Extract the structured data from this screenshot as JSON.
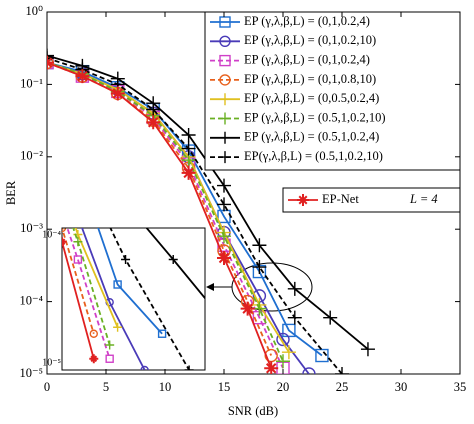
{
  "chart_data": {
    "type": "line",
    "yscale": "log",
    "grid": false,
    "xlabel": "SNR (dB)",
    "ylabel": "BER",
    "xlim": [
      0,
      35
    ],
    "xticks": [
      0,
      5,
      10,
      15,
      20,
      25,
      30,
      35
    ],
    "ylim": [
      1e-05,
      1
    ],
    "yticks": [
      {
        "value": 1e-05,
        "label": "10⁻⁵"
      },
      {
        "value": 0.0001,
        "label": "10⁻⁴"
      },
      {
        "value": 0.001,
        "label": "10⁻³"
      },
      {
        "value": 0.01,
        "label": "10⁻²"
      },
      {
        "value": 0.1,
        "label": "10⁻¹"
      },
      {
        "value": 1,
        "label": "10⁰"
      }
    ],
    "series": [
      {
        "name": "EP (γ,λ,β,L) = (0,1,0.2,4)",
        "color": "#1f6fd0",
        "marker": "square",
        "dashed": false,
        "legend": 1,
        "x": [
          0,
          3,
          6,
          9,
          12,
          15,
          18,
          20.5,
          23.3
        ],
        "values": [
          0.2,
          0.15,
          0.09,
          0.045,
          0.012,
          0.0015,
          0.00026,
          4e-05,
          1.8e-05
        ]
      },
      {
        "name": "EP (γ,λ,β,L) = (0,1,0.2,10)",
        "color": "#4a3bb8",
        "marker": "circle",
        "dashed": false,
        "legend": 1,
        "x": [
          0,
          3,
          6,
          9,
          12,
          15,
          18,
          20,
          22.2
        ],
        "values": [
          0.2,
          0.14,
          0.085,
          0.04,
          0.01,
          0.0009,
          0.00012,
          3e-05,
          1e-05
        ]
      },
      {
        "name": "EP (γ,λ,β,L) = (0,1,0.2,4)",
        "color": "#d040c8",
        "marker": "square",
        "dashed": true,
        "legend": 1,
        "x": [
          0,
          3,
          6,
          9,
          12,
          15,
          18,
          20
        ],
        "values": [
          0.2,
          0.13,
          0.08,
          0.035,
          0.008,
          0.0006,
          6e-05,
          1.2e-05
        ]
      },
      {
        "name": "EP (γ,λ,β,L) = (0,1,0.8,10)",
        "color": "#e8601c",
        "marker": "circle",
        "dashed": true,
        "legend": 1,
        "x": [
          0,
          3,
          6,
          9,
          12,
          15,
          17,
          19
        ],
        "values": [
          0.2,
          0.13,
          0.075,
          0.032,
          0.007,
          0.0005,
          0.0001,
          1.8e-05
        ]
      },
      {
        "name": "EP (γ,λ,β,L) = (0,0.5,0.2,4)",
        "color": "#e0c020",
        "marker": "plus",
        "dashed": false,
        "legend": 1,
        "x": [
          0,
          3,
          6,
          9,
          12,
          15,
          18,
          20.5
        ],
        "values": [
          0.2,
          0.14,
          0.085,
          0.04,
          0.01,
          0.0009,
          9e-05,
          2e-05
        ]
      },
      {
        "name": "EP (γ,λ,β,L) = (0.5,1,0.2,10)",
        "color": "#6ab023",
        "marker": "plus",
        "dashed": true,
        "legend": 1,
        "x": [
          0,
          3,
          6,
          9,
          12,
          15,
          18,
          20
        ],
        "values": [
          0.2,
          0.14,
          0.08,
          0.037,
          0.009,
          0.0008,
          8e-05,
          1.5e-05
        ]
      },
      {
        "name": "EP (γ,λ,β,L) = (0.5,1,0.2,4)",
        "color": "#000000",
        "marker": "plus",
        "dashed": false,
        "legend": 1,
        "x": [
          0,
          3,
          6,
          9,
          12,
          15,
          18,
          21,
          24,
          27.2
        ],
        "values": [
          0.25,
          0.18,
          0.12,
          0.055,
          0.02,
          0.004,
          0.0006,
          0.00015,
          6e-05,
          2.2e-05
        ]
      },
      {
        "name": "EP(γ,λ,β,L) = (0.5,1,0.2,10)",
        "color": "#000000",
        "marker": "plus",
        "dashed": true,
        "legend": 1,
        "x": [
          0,
          3,
          6,
          9,
          12,
          15,
          18,
          21,
          25
        ],
        "values": [
          0.23,
          0.16,
          0.1,
          0.045,
          0.013,
          0.0022,
          0.0003,
          6e-05,
          1e-05
        ]
      },
      {
        "name": "EP-Net",
        "color": "#e02020",
        "marker": "star",
        "dashed": false,
        "legend": 2,
        "x": [
          0,
          3,
          6,
          9,
          12,
          15,
          17,
          19
        ],
        "values": [
          0.2,
          0.13,
          0.075,
          0.03,
          0.006,
          0.0004,
          8e-05,
          1.2e-05
        ]
      }
    ],
    "legend2_note": "L = 4",
    "inset": {
      "xlim": [
        17,
        26
      ],
      "ylim": [
        1e-05,
        0.0001
      ],
      "yticks": [
        {
          "value": 1e-05,
          "label": "10⁻⁵"
        },
        {
          "value": 0.0001,
          "label": "10⁻⁴"
        }
      ]
    }
  }
}
